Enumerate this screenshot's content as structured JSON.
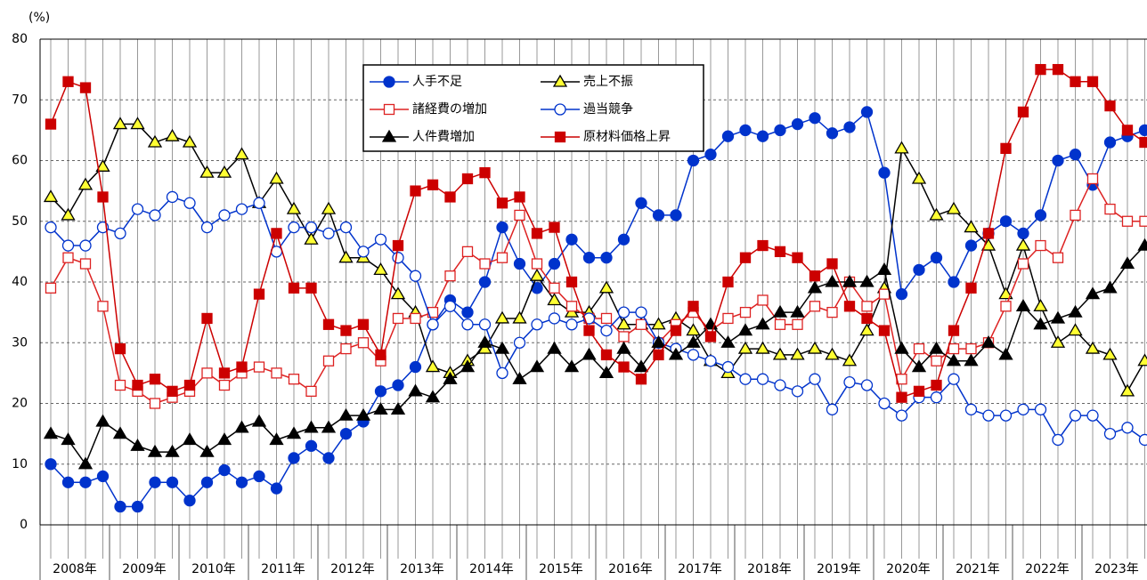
{
  "chart_data": {
    "type": "line",
    "unit_label": "(%)",
    "categories": [
      null,
      null,
      null,
      null,
      null,
      null,
      null,
      null,
      null,
      null,
      null,
      null,
      null,
      null,
      null,
      null,
      null,
      null,
      null,
      null,
      null,
      null,
      null,
      null,
      null,
      null,
      null,
      null,
      null,
      null,
      null,
      null,
      null,
      null,
      null,
      null,
      null,
      null,
      null,
      null,
      null,
      null,
      null,
      null,
      null,
      null,
      null,
      null,
      null,
      null,
      null,
      null,
      null,
      null,
      null,
      null,
      null,
      null,
      null,
      null,
      null,
      null,
      null,
      null
    ],
    "year_labels": [
      "2008年",
      "2009年",
      "2010年",
      "2011年",
      "2012年",
      "2013年",
      "2014年",
      "2015年",
      "2016年",
      "2017年",
      "2018年",
      "2019年",
      "2020年",
      "2021年",
      "2022年",
      "2023年"
    ],
    "ylim": [
      0,
      80
    ],
    "yticks": [
      0,
      10,
      20,
      30,
      40,
      50,
      60,
      70,
      80
    ],
    "grid": true,
    "series": [
      {
        "name": "人手不足",
        "color": "#0033cc",
        "marker": "circle",
        "marker_fill": "#0033cc",
        "values": [
          10,
          7,
          7,
          8,
          3,
          3,
          7,
          7,
          4,
          7,
          9,
          7,
          8,
          6,
          11,
          13,
          11,
          15,
          17,
          22,
          23,
          26,
          33,
          37,
          35,
          40,
          49,
          43,
          39,
          43,
          47,
          44,
          44,
          47,
          53,
          51,
          51,
          60,
          61,
          64,
          65,
          64,
          65,
          66,
          67,
          64.5,
          65.5,
          68,
          58,
          38,
          42,
          44,
          40,
          46,
          48,
          50,
          48,
          51,
          60,
          61,
          56,
          63,
          64,
          65
        ]
      },
      {
        "name": "売上不振",
        "color": "#000000",
        "marker": "triangle",
        "marker_fill": "#ffff33",
        "values": [
          54,
          51,
          56,
          59,
          66,
          66,
          63,
          64,
          63,
          58,
          58,
          61,
          53,
          57,
          52,
          47,
          52,
          44,
          44,
          42,
          38,
          35,
          26,
          25,
          27,
          29,
          34,
          34,
          41,
          37,
          35,
          35,
          39,
          33,
          33,
          33,
          34,
          32,
          27,
          25,
          29,
          29,
          28,
          28,
          29,
          28,
          27,
          32,
          39,
          62,
          57,
          51,
          52,
          49,
          46,
          38,
          46,
          36,
          30,
          32,
          29,
          28,
          22,
          27
        ]
      },
      {
        "name": "諸経費の増加",
        "color": "#dd2222",
        "marker": "square",
        "marker_fill": "#ffffff",
        "values": [
          39,
          44,
          43,
          36,
          23,
          22,
          20,
          21,
          22,
          25,
          23,
          25,
          26,
          25,
          24,
          22,
          27,
          29,
          30,
          27,
          34,
          34,
          35,
          41,
          45,
          43,
          44,
          51,
          43,
          39,
          36,
          34,
          34,
          31,
          33,
          30,
          33,
          35,
          32,
          34,
          35,
          37,
          33,
          33,
          36,
          35,
          40,
          36,
          38,
          24,
          29,
          27,
          29,
          29,
          30,
          36,
          43,
          46,
          44,
          51,
          57,
          52,
          50,
          50
        ]
      },
      {
        "name": "過当競争",
        "color": "#0033cc",
        "marker": "circle",
        "marker_fill": "#ffffff",
        "values": [
          49,
          46,
          46,
          49,
          48,
          52,
          51,
          54,
          53,
          49,
          51,
          52,
          53,
          45,
          49,
          49,
          48,
          49,
          45,
          47,
          44,
          41,
          33,
          36,
          33,
          33,
          25,
          30,
          33,
          34,
          33,
          34,
          32,
          35,
          35,
          30,
          29,
          28,
          27,
          26,
          24,
          24,
          23,
          22,
          24,
          19,
          23.5,
          23,
          20,
          18,
          21,
          21,
          24,
          19,
          18,
          18,
          19,
          19,
          14,
          18,
          18,
          15,
          16,
          14
        ]
      },
      {
        "name": "人件費増加",
        "color": "#000000",
        "marker": "triangle",
        "marker_fill": "#000000",
        "values": [
          15,
          14,
          10,
          17,
          15,
          13,
          12,
          12,
          14,
          12,
          14,
          16,
          17,
          14,
          15,
          16,
          16,
          18,
          18,
          19,
          19,
          22,
          21,
          24,
          26,
          30,
          29,
          24,
          26,
          29,
          26,
          28,
          25,
          29,
          26,
          30,
          28,
          30,
          33,
          30,
          32,
          33,
          35,
          35,
          39,
          40,
          40,
          40,
          42,
          29,
          26,
          29,
          27,
          27,
          30,
          28,
          36,
          33,
          34,
          35,
          38,
          39,
          43,
          46
        ]
      },
      {
        "name": "原材料価格上昇",
        "color": "#cc0000",
        "marker": "square",
        "marker_fill": "#cc0000",
        "values": [
          66,
          73,
          72,
          54,
          29,
          23,
          24,
          22,
          23,
          34,
          25,
          26,
          38,
          48,
          39,
          39,
          33,
          32,
          33,
          28,
          46,
          55,
          56,
          54,
          57,
          58,
          53,
          54,
          48,
          49,
          40,
          32,
          28,
          26,
          24,
          28,
          32,
          36,
          31,
          40,
          44,
          46,
          45,
          44,
          41,
          43,
          36,
          34,
          32,
          21,
          22,
          23,
          32,
          39,
          48,
          62,
          68,
          75,
          75,
          73,
          73,
          69,
          65,
          63
        ]
      }
    ]
  }
}
